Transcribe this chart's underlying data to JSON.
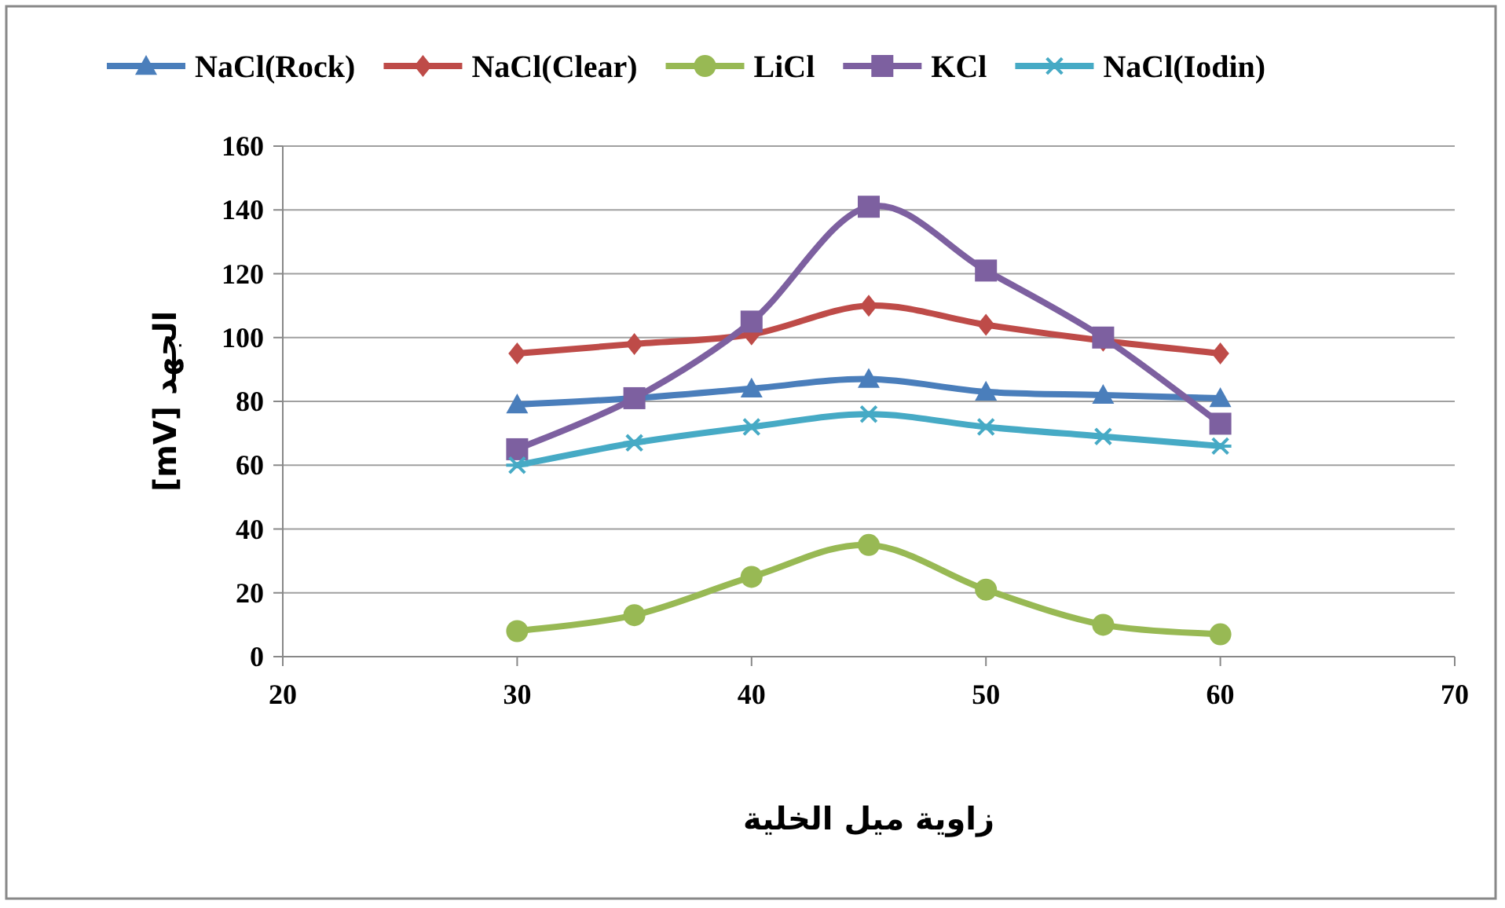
{
  "chart_data": {
    "type": "line",
    "xlabel": "زاوية ميل الخلية",
    "ylabel": "الجهد [mV]",
    "x": [
      30,
      35,
      40,
      45,
      50,
      55,
      60
    ],
    "series": [
      {
        "name": "NaCl(Rock)",
        "color": "#4a7ebb",
        "marker": "triangle",
        "values": [
          79,
          81,
          84,
          87,
          83,
          82,
          81
        ]
      },
      {
        "name": "NaCl(Clear)",
        "color": "#be4b48",
        "marker": "diamond",
        "values": [
          95,
          98,
          101,
          110,
          104,
          99,
          95
        ]
      },
      {
        "name": "LiCl",
        "color": "#98b954",
        "marker": "circle",
        "values": [
          8,
          13,
          25,
          35,
          21,
          10,
          7
        ]
      },
      {
        "name": "KCl",
        "color": "#7d60a0",
        "marker": "square",
        "values": [
          65,
          81,
          105,
          141,
          121,
          100,
          73
        ]
      },
      {
        "name": "NaCl(Iodin)",
        "color": "#46aac5",
        "marker": "cross",
        "values": [
          60,
          67,
          72,
          76,
          72,
          69,
          66
        ]
      }
    ],
    "xlim": [
      20,
      70
    ],
    "xticks": [
      20,
      30,
      40,
      50,
      60,
      70
    ],
    "ylim": [
      0,
      160
    ],
    "yticks": [
      0,
      20,
      40,
      60,
      80,
      100,
      120,
      140,
      160
    ],
    "grid": "y",
    "legend": "top"
  }
}
